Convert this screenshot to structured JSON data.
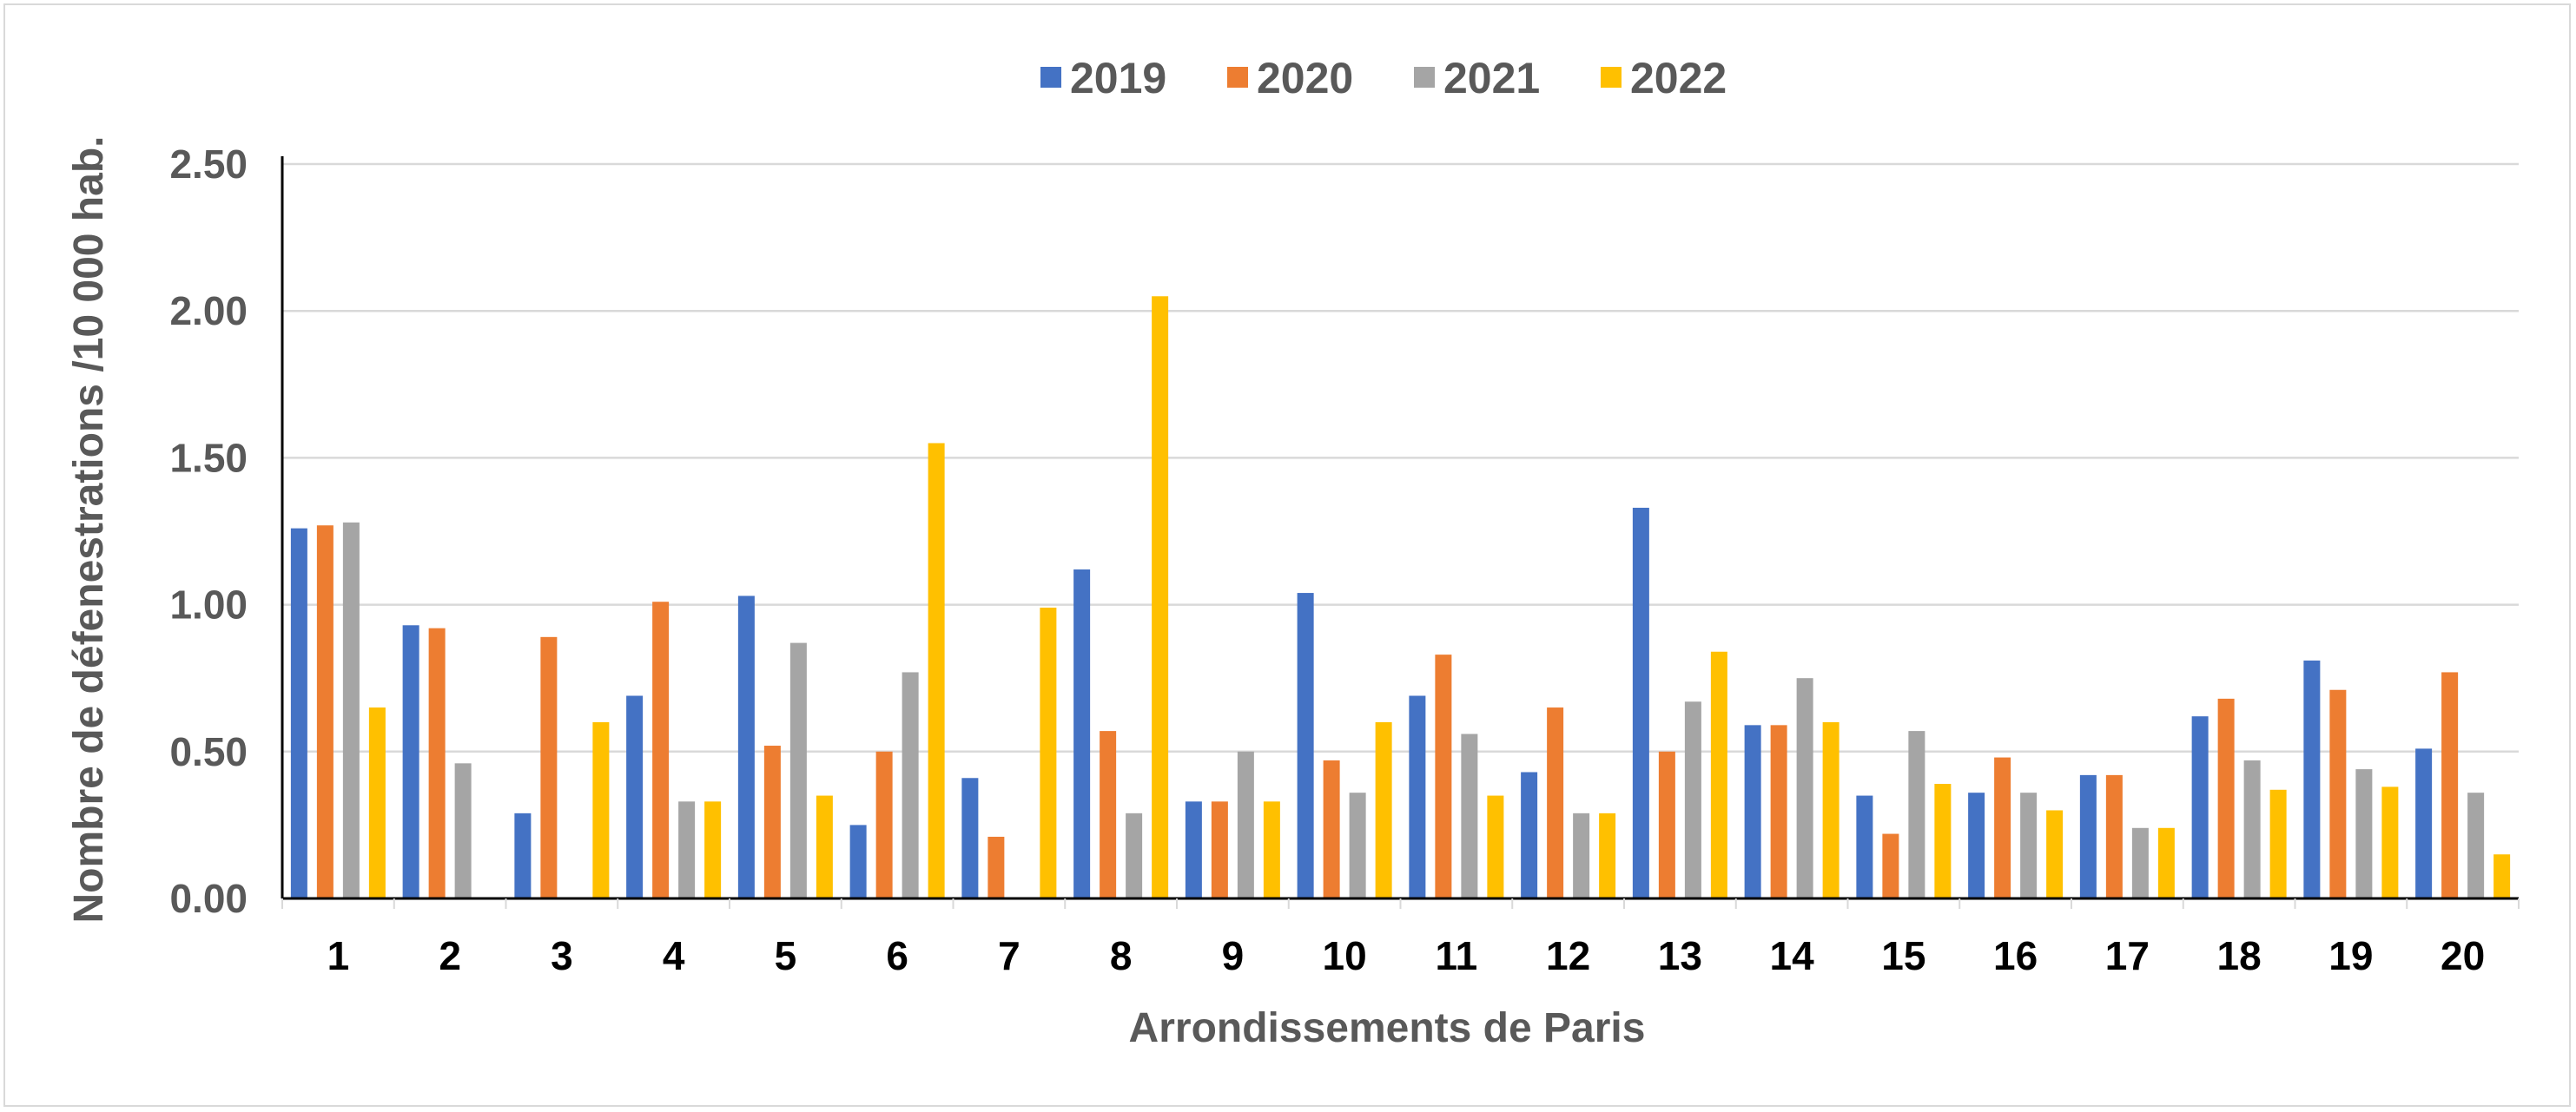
{
  "chart_data": {
    "type": "bar",
    "title": "",
    "xlabel": "Arrondissements de Paris",
    "ylabel": "Nombre de défenestrations /10 000 hab.",
    "ylim": [
      0,
      2.5
    ],
    "yticks": [
      "0.00",
      "0.50",
      "1.00",
      "1.50",
      "2.00",
      "2.50"
    ],
    "ytick_values": [
      0,
      0.5,
      1.0,
      1.5,
      2.0,
      2.5
    ],
    "grid": true,
    "legend_position": "top",
    "categories": [
      "1",
      "2",
      "3",
      "4",
      "5",
      "6",
      "7",
      "8",
      "9",
      "10",
      "11",
      "12",
      "13",
      "14",
      "15",
      "16",
      "17",
      "18",
      "19",
      "20"
    ],
    "series": [
      {
        "name": "2019",
        "color": "#4472C4",
        "values": [
          1.26,
          0.93,
          0.29,
          0.69,
          1.03,
          0.25,
          0.41,
          1.12,
          0.33,
          1.04,
          0.69,
          0.43,
          1.33,
          0.59,
          0.35,
          0.36,
          0.42,
          0.62,
          0.81,
          0.51
        ]
      },
      {
        "name": "2020",
        "color": "#ED7D31",
        "values": [
          1.27,
          0.92,
          0.89,
          1.01,
          0.52,
          0.5,
          0.21,
          0.57,
          0.33,
          0.47,
          0.83,
          0.65,
          0.5,
          0.59,
          0.22,
          0.48,
          0.42,
          0.68,
          0.71,
          0.77
        ]
      },
      {
        "name": "2021",
        "color": "#A5A5A5",
        "values": [
          1.28,
          0.46,
          0,
          0.33,
          0.87,
          0.77,
          0,
          0.29,
          0.5,
          0.36,
          0.56,
          0.29,
          0.67,
          0.75,
          0.57,
          0.36,
          0.24,
          0.47,
          0.44,
          0.36
        ]
      },
      {
        "name": "2022",
        "color": "#FFC000",
        "values": [
          0.65,
          0,
          0.6,
          0.33,
          0.35,
          1.55,
          0.99,
          2.05,
          0.33,
          0.6,
          0.35,
          0.29,
          0.84,
          0.6,
          0.39,
          0.3,
          0.24,
          0.37,
          0.38,
          0.15
        ]
      }
    ]
  }
}
